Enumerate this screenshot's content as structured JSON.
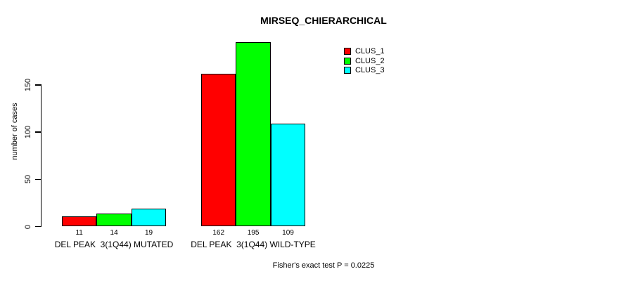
{
  "chart_data": {
    "type": "bar",
    "title": "MIRSEQ_CHIERARCHICAL",
    "ylabel": "number of cases",
    "xlabel": "",
    "categories": [
      "DEL PEAK  3(1Q44) MUTATED",
      "DEL PEAK  3(1Q44) WILD-TYPE"
    ],
    "series": [
      {
        "name": "CLUS_1",
        "color": "#ff0000",
        "values": [
          11,
          162
        ]
      },
      {
        "name": "CLUS_2",
        "color": "#00ff00",
        "values": [
          14,
          195
        ]
      },
      {
        "name": "CLUS_3",
        "color": "#00ffff",
        "values": [
          19,
          109
        ]
      }
    ],
    "yticks": [
      0,
      50,
      100,
      150
    ],
    "ylim": [
      0,
      195
    ],
    "grid": false,
    "legend_position": "top-right",
    "bar_value_labels": [
      [
        11,
        14,
        19
      ],
      [
        162,
        195,
        109
      ]
    ],
    "annotation": "Fisher's exact test P = 0.0225"
  },
  "colors": {
    "background": "#ffffff",
    "text": "#000000",
    "axis": "#000000",
    "bar_border": "#000000"
  }
}
